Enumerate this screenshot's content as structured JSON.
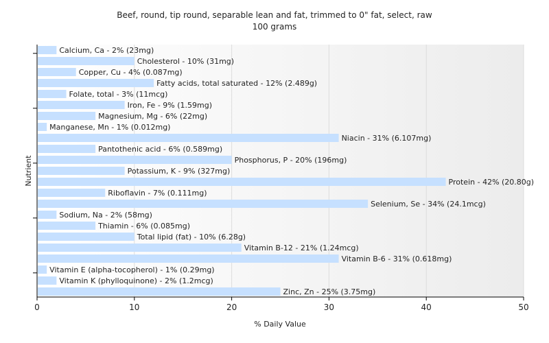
{
  "chart_data": {
    "type": "bar",
    "orientation": "horizontal",
    "title": "Beef, round, tip round, separable lean and fat, trimmed to 0\" fat, select, raw",
    "subtitle": "100 grams",
    "xlabel": "% Daily Value",
    "ylabel": "Nutrient",
    "xlim": [
      0,
      50
    ],
    "xticks": [
      "0",
      "10",
      "20",
      "30",
      "40",
      "50"
    ],
    "grid": "vertical",
    "bar_color": "#c6e0ff",
    "categories": [
      "Calcium, Ca",
      "Cholesterol",
      "Copper, Cu",
      "Fatty acids, total saturated",
      "Folate, total",
      "Iron, Fe",
      "Magnesium, Mg",
      "Manganese, Mn",
      "Niacin",
      "Pantothenic acid",
      "Phosphorus, P",
      "Potassium, K",
      "Protein",
      "Riboflavin",
      "Selenium, Se",
      "Sodium, Na",
      "Thiamin",
      "Total lipid (fat)",
      "Vitamin B-12",
      "Vitamin B-6",
      "Vitamin E (alpha-tocopherol)",
      "Vitamin K (phylloquinone)",
      "Zinc, Zn"
    ],
    "values": [
      2,
      10,
      4,
      12,
      3,
      9,
      6,
      1,
      31,
      6,
      20,
      9,
      42,
      7,
      34,
      2,
      6,
      10,
      21,
      31,
      1,
      2,
      25
    ],
    "labels": [
      "Calcium, Ca - 2% (23mg)",
      "Cholesterol - 10% (31mg)",
      "Copper, Cu - 4% (0.087mg)",
      "Fatty acids, total saturated - 12% (2.489g)",
      "Folate, total - 3% (11mcg)",
      "Iron, Fe - 9% (1.59mg)",
      "Magnesium, Mg - 6% (22mg)",
      "Manganese, Mn - 1% (0.012mg)",
      "Niacin - 31% (6.107mg)",
      "Pantothenic acid - 6% (0.589mg)",
      "Phosphorus, P - 20% (196mg)",
      "Potassium, K - 9% (327mg)",
      "Protein - 42% (20.80g)",
      "Riboflavin - 7% (0.111mg)",
      "Selenium, Se - 34% (24.1mcg)",
      "Sodium, Na - 2% (58mg)",
      "Thiamin - 6% (0.085mg)",
      "Total lipid (fat) - 10% (6.28g)",
      "Vitamin B-12 - 21% (1.24mcg)",
      "Vitamin B-6 - 31% (0.618mg)",
      "Vitamin E (alpha-tocopherol) - 1% (0.29mg)",
      "Vitamin K (phylloquinone) - 2% (1.2mcg)",
      "Zinc, Zn - 25% (3.75mg)"
    ]
  }
}
